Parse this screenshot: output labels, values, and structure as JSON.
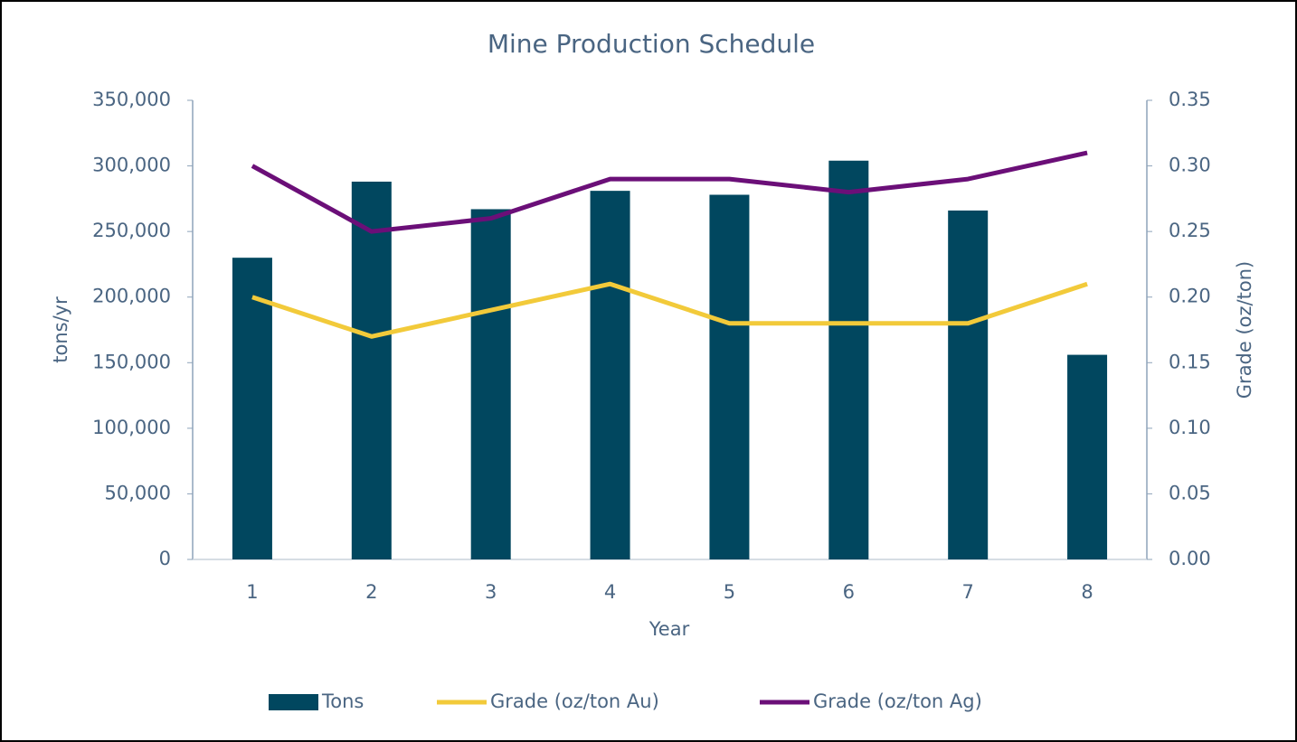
{
  "chart_data": {
    "type": "bar",
    "title": "Mine Production Schedule",
    "x_label": "Year",
    "y_label": "tons/yr",
    "y2_label": "Grade (oz/ton)",
    "categories": [
      "1",
      "2",
      "3",
      "4",
      "5",
      "6",
      "7",
      "8"
    ],
    "series": [
      {
        "name": "Tons",
        "type": "bar",
        "color": "#01475f",
        "values": [
          230000,
          288000,
          267000,
          281000,
          278000,
          304000,
          266000,
          156000
        ]
      },
      {
        "name": "Grade (oz/ton Au)",
        "type": "line",
        "axis": "y2",
        "color": "#f2ca3a",
        "values": [
          0.2,
          0.17,
          0.19,
          0.21,
          0.18,
          0.18,
          0.18,
          0.21
        ]
      },
      {
        "name": "Grade (oz/ton Ag)",
        "type": "line",
        "axis": "y2",
        "color": "#6b0f78",
        "values": [
          0.3,
          0.25,
          0.26,
          0.29,
          0.29,
          0.28,
          0.29,
          0.31
        ]
      }
    ],
    "ylim": [
      0,
      350000
    ],
    "yticks": [
      0,
      {
        "value": 50000,
        "label": "50,000"
      },
      {
        "value": 100000,
        "label": "100,000"
      },
      {
        "value": 150000,
        "label": "150,000"
      },
      {
        "value": 200000,
        "label": "200,000"
      },
      {
        "value": 250000,
        "label": "250,000"
      },
      {
        "value": 300000,
        "label": "300,000"
      },
      {
        "value": 350000,
        "label": "350,000"
      }
    ],
    "y2lim": [
      0,
      0.35
    ],
    "y2ticks": [
      {
        "value": 0,
        "label": "0.00"
      },
      0.05,
      {
        "value": 0.1,
        "label": "0.10"
      },
      0.15,
      {
        "value": 0.2,
        "label": "0.20"
      },
      0.25,
      {
        "value": 0.3,
        "label": "0.30"
      },
      0.35
    ],
    "grid": false,
    "legend": "bottom"
  }
}
